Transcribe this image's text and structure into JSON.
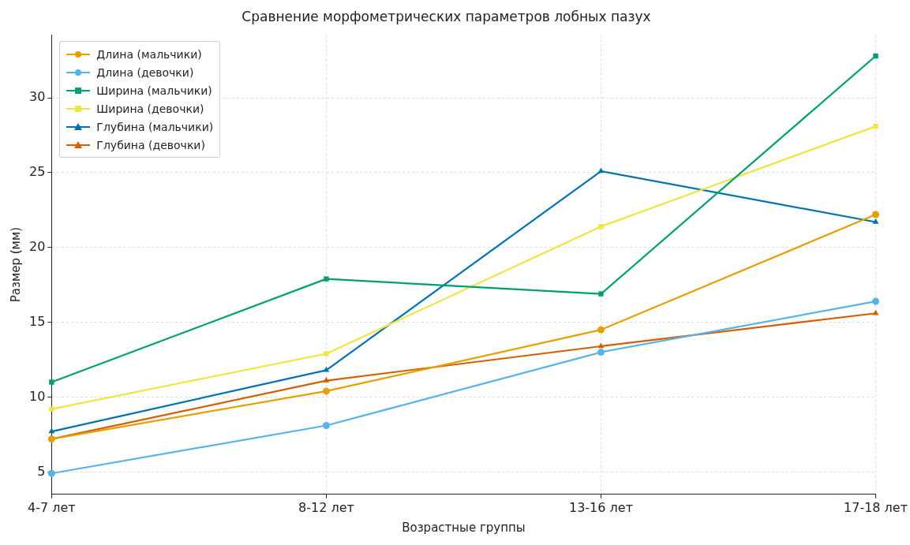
{
  "chart_data": {
    "type": "line",
    "title": "Сравнение морфометрических параметров лобных пазух",
    "xlabel": "Возрастные группы",
    "ylabel": "Размер (мм)",
    "categories": [
      "4-7 лет",
      "8-12 лет",
      "13-16 лет",
      "17-18 лет"
    ],
    "series": [
      {
        "name": "Длина (мальчики)",
        "color": "#e69f00",
        "marker": "circle",
        "values": [
          7.2,
          10.4,
          14.5,
          22.2
        ]
      },
      {
        "name": "Длина (девочки)",
        "color": "#56b4e9",
        "marker": "circle",
        "values": [
          4.9,
          8.1,
          13.0,
          16.4
        ]
      },
      {
        "name": "Ширина (мальчики)",
        "color": "#009e73",
        "marker": "square",
        "values": [
          11.0,
          17.9,
          16.9,
          32.8
        ]
      },
      {
        "name": "Ширина (девочки)",
        "color": "#f0e442",
        "marker": "square",
        "values": [
          9.2,
          12.9,
          21.4,
          28.1
        ]
      },
      {
        "name": "Глубина (мальчики)",
        "color": "#0072b2",
        "marker": "triangle",
        "values": [
          7.7,
          11.8,
          25.1,
          21.7
        ]
      },
      {
        "name": "Глубина (девочки)",
        "color": "#d55e00",
        "marker": "triangle",
        "values": [
          7.2,
          11.1,
          13.4,
          15.6
        ]
      }
    ],
    "ylim": [
      3.5,
      34.2
    ],
    "yticks": [
      5,
      10,
      15,
      20,
      25,
      30
    ],
    "grid": true,
    "legend": "top left",
    "line_style": "solid"
  }
}
